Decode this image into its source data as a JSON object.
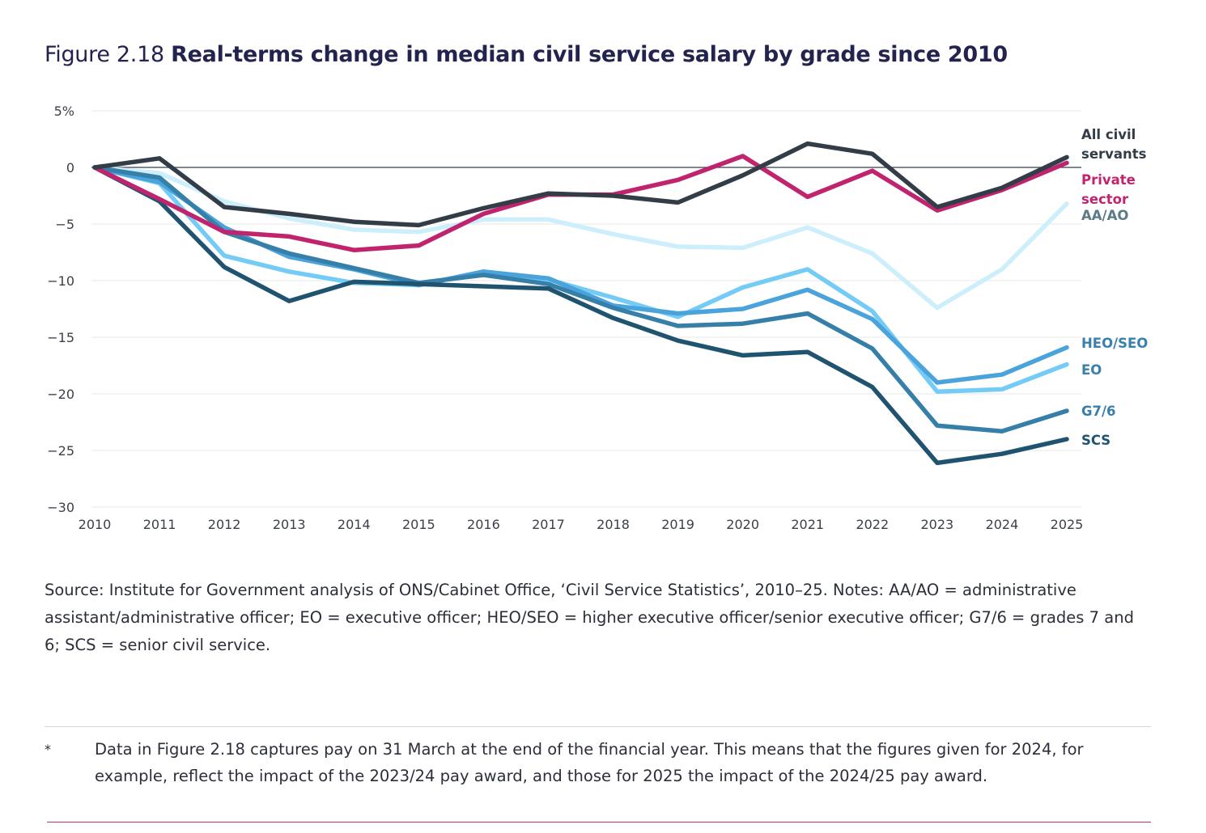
{
  "figure": {
    "prefix": "Figure 2.18",
    "title": "Real-terms change in median civil service salary by grade since 2010"
  },
  "chart_data": {
    "type": "line",
    "title": "Real-terms change in median civil service salary by grade since 2010",
    "xlabel": "",
    "ylabel": "",
    "x": [
      2010,
      2011,
      2012,
      2013,
      2014,
      2015,
      2016,
      2017,
      2018,
      2019,
      2020,
      2021,
      2022,
      2023,
      2024,
      2025
    ],
    "x_tick_labels": [
      "2010",
      "2011",
      "2012",
      "2013",
      "2014",
      "2015",
      "2016",
      "2017",
      "2018",
      "2019",
      "2020",
      "2021",
      "2022",
      "2023",
      "2024",
      "2025"
    ],
    "ylim": [
      -30,
      5
    ],
    "y_ticks": [
      5,
      0,
      -5,
      -10,
      -15,
      -20,
      -25,
      -30
    ],
    "y_tick_labels": [
      "5%",
      "0",
      "−5",
      "−10",
      "−15",
      "−20",
      "−25",
      "−30"
    ],
    "grid": true,
    "legend": "direct-labels-right",
    "series": [
      {
        "name": "AA/AO",
        "label_lines": [
          "AA/AO"
        ],
        "color": "#cdeefb",
        "label_color": "#5a7a88",
        "values": [
          0,
          -0.5,
          -3.0,
          -4.5,
          -5.5,
          -5.7,
          -4.6,
          -4.6,
          -5.9,
          -7.0,
          -7.1,
          -5.3,
          -7.6,
          -12.4,
          -9.0,
          -3.2
        ]
      },
      {
        "name": "EO",
        "label_lines": [
          "EO"
        ],
        "color": "#74cbf5",
        "label_color": "#3a80ad",
        "values": [
          0,
          -1.4,
          -7.8,
          -9.2,
          -10.2,
          -10.4,
          -9.2,
          -9.9,
          -11.5,
          -13.2,
          -10.6,
          -9.0,
          -12.7,
          -19.8,
          -19.6,
          -17.4
        ]
      },
      {
        "name": "HEO/SEO",
        "label_lines": [
          "HEO/SEO"
        ],
        "color": "#4aa3db",
        "label_color": "#3a80ad",
        "values": [
          0,
          -1.3,
          -5.3,
          -7.9,
          -9.0,
          -10.4,
          -9.2,
          -9.8,
          -12.2,
          -12.9,
          -12.5,
          -10.8,
          -13.4,
          -19.0,
          -18.3,
          -15.9
        ]
      },
      {
        "name": "G7/6",
        "label_lines": [
          "G7/6"
        ],
        "color": "#357fa9",
        "label_color": "#357fa9",
        "values": [
          0,
          -0.9,
          -5.7,
          -7.6,
          -8.9,
          -10.2,
          -9.5,
          -10.3,
          -12.4,
          -14.0,
          -13.8,
          -12.9,
          -16.0,
          -22.8,
          -23.3,
          -21.5
        ]
      },
      {
        "name": "SCS",
        "label_lines": [
          "SCS"
        ],
        "color": "#1f5370",
        "label_color": "#1f5370",
        "values": [
          0,
          -3.0,
          -8.8,
          -11.8,
          -10.1,
          -10.3,
          -10.5,
          -10.7,
          -13.3,
          -15.3,
          -16.6,
          -16.3,
          -19.4,
          -26.1,
          -25.3,
          -24.0
        ]
      },
      {
        "name": "Private sector",
        "label_lines": [
          "Private",
          "sector"
        ],
        "color": "#c0246e",
        "label_color": "#c0246e",
        "values": [
          0,
          -2.8,
          -5.7,
          -6.1,
          -7.3,
          -6.9,
          -4.1,
          -2.4,
          -2.4,
          -1.1,
          1.0,
          -2.6,
          -0.3,
          -3.8,
          -2.0,
          0.4
        ]
      },
      {
        "name": "All civil servants",
        "label_lines": [
          "All civil",
          "servants"
        ],
        "color": "#333d47",
        "label_color": "#333d47",
        "values": [
          0,
          0.8,
          -3.5,
          -4.1,
          -4.8,
          -5.1,
          -3.6,
          -2.3,
          -2.5,
          -3.1,
          -0.7,
          2.1,
          1.2,
          -3.5,
          -1.8,
          0.9
        ]
      }
    ]
  },
  "source_text": "Source: Institute for Government analysis of ONS/Cabinet Office, ‘Civil Service Statistics’, 2010–25. Notes: AA/AO = administrative assistant/administrative officer; EO = executive officer; HEO/SEO = higher executive officer/senior executive officer; G7/6 = grades 7 and 6; SCS = senior civil service.",
  "footnote": {
    "marker": "*",
    "text": "Data in Figure 2.18 captures pay on 31 March at the end of the financial year. This means that the figures given for 2024, for example, reflect the impact of the 2023/24 pay award, and those for 2025 the impact of the 2024/25 pay award."
  }
}
